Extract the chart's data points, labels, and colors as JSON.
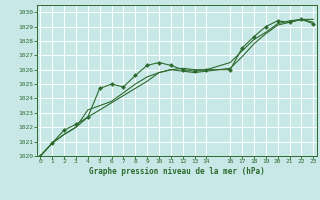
{
  "title": "Graphe pression niveau de la mer (hPa)",
  "bg_color": "#c8e8e8",
  "grid_color": "#ffffff",
  "line_color": "#2d6a2d",
  "marker_color": "#2d6a2d",
  "xlim": [
    -0.3,
    23.3
  ],
  "ylim": [
    1020,
    1030.5
  ],
  "xtick_vals": [
    0,
    1,
    2,
    3,
    4,
    5,
    6,
    7,
    8,
    9,
    10,
    11,
    12,
    13,
    14,
    16,
    17,
    18,
    19,
    20,
    21,
    22,
    23
  ],
  "ytick_vals": [
    1020,
    1021,
    1022,
    1023,
    1024,
    1025,
    1026,
    1027,
    1028,
    1029,
    1030
  ],
  "series1_x": [
    0,
    1,
    2,
    3,
    4,
    5,
    6,
    7,
    8,
    9,
    10,
    11,
    12,
    13,
    14,
    16,
    17,
    18,
    19,
    20,
    21,
    22,
    23
  ],
  "series1_y": [
    1020.0,
    1020.9,
    1021.8,
    1022.2,
    1022.7,
    1024.7,
    1025.0,
    1024.8,
    1025.6,
    1026.3,
    1026.5,
    1026.3,
    1026.0,
    1025.9,
    1026.0,
    1026.0,
    1027.5,
    1028.3,
    1029.0,
    1029.4,
    1029.3,
    1029.5,
    1029.2
  ],
  "series2_x": [
    0,
    1,
    2,
    3,
    4,
    5,
    6,
    7,
    8,
    9,
    10,
    11,
    12,
    13,
    14,
    16,
    17,
    18,
    19,
    20,
    21,
    22,
    23
  ],
  "series2_y": [
    1020.0,
    1020.9,
    1021.5,
    1022.0,
    1023.2,
    1023.5,
    1023.8,
    1024.4,
    1025.0,
    1025.5,
    1025.8,
    1026.0,
    1026.1,
    1026.0,
    1026.0,
    1026.5,
    1027.3,
    1028.1,
    1028.6,
    1029.2,
    1029.4,
    1029.5,
    1029.5
  ],
  "series3_x": [
    0,
    1,
    2,
    3,
    4,
    5,
    6,
    7,
    8,
    9,
    10,
    11,
    12,
    13,
    14,
    16,
    17,
    18,
    19,
    20,
    21,
    22,
    23
  ],
  "series3_y": [
    1020.0,
    1020.9,
    1021.5,
    1022.0,
    1022.7,
    1023.2,
    1023.7,
    1024.2,
    1024.7,
    1025.2,
    1025.8,
    1026.0,
    1025.9,
    1025.8,
    1025.9,
    1026.1,
    1026.9,
    1027.8,
    1028.5,
    1029.1,
    1029.3,
    1029.5,
    1029.3
  ]
}
